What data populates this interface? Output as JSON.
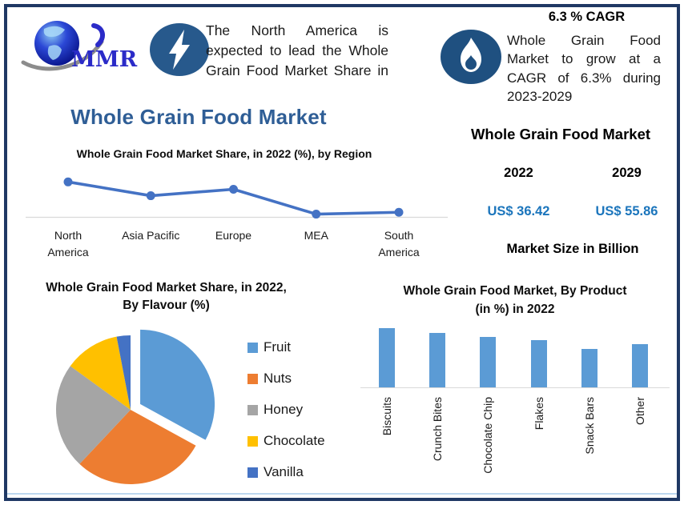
{
  "brand": {
    "logo_text": "MMR",
    "logo_icon": "globe-icon"
  },
  "highlight_lead": {
    "icon": "lightning-icon",
    "text": "The North America is expected to lead the Whole Grain Food Market Share in"
  },
  "highlight_cagr": {
    "icon": "flame-icon",
    "heading": "6.3 % CAGR",
    "text": "Whole Grain Food Market to grow at a CAGR of 6.3% during 2023-2029"
  },
  "main_title": "Whole Grain Food Market",
  "market_size_panel": {
    "title": "Whole Grain Food Market",
    "col_2022": {
      "year": "2022",
      "value": "US$ 36.42"
    },
    "col_2029": {
      "year": "2029",
      "value": "US$ 55.86"
    },
    "caption": "Market Size in Billion"
  },
  "colors": {
    "border_navy": "#1F3864",
    "bottom_accent": "#BDD7EE",
    "title_blue": "#2F5E96",
    "value_blue": "#1B75BC",
    "icon_bg_lightning": "#27598C",
    "icon_bg_flame": "#1F5080",
    "axis_gray": "#D9D9D9"
  },
  "chart_data": [
    {
      "type": "line",
      "title": "Whole Grain Food Market Share, in 2022 (%), by Region",
      "categories": [
        "North America",
        "Asia Pacific",
        "Europe",
        "MEA",
        "South America"
      ],
      "values": [
        38,
        23,
        30,
        3,
        5
      ],
      "values_estimated": true,
      "line_color": "#4472C4",
      "axis_labels_shown": false,
      "grid": false
    },
    {
      "type": "pie",
      "title": "Whole Grain Food Market Share, in 2022, By Flavour (%)",
      "slices": [
        {
          "label": "Fruit",
          "value": 33,
          "color": "#5B9BD5",
          "exploded": true
        },
        {
          "label": "Nuts",
          "value": 29,
          "color": "#ED7D31",
          "exploded": false
        },
        {
          "label": "Honey",
          "value": 23,
          "color": "#A5A5A5",
          "exploded": false
        },
        {
          "label": "Chocolate",
          "value": 12,
          "color": "#FFC000",
          "exploded": false
        },
        {
          "label": "Vanilla",
          "value": 3,
          "color": "#4472C4",
          "exploded": false
        }
      ],
      "values_estimated": true,
      "legend_position": "right",
      "start_angle_deg": 0,
      "direction": "clockwise"
    },
    {
      "type": "bar",
      "title": "Whole Grain Food Market, By Product (in %) in 2022",
      "categories": [
        "Biscuits",
        "Crunch Bites",
        "Chocolate Chip",
        "Flakes",
        "Snack Bars",
        "Other"
      ],
      "values": [
        20,
        18.5,
        17,
        16,
        13,
        14.5
      ],
      "values_estimated": true,
      "bar_color": "#5B9BD5",
      "axis_labels_shown": false,
      "grid": false
    }
  ]
}
